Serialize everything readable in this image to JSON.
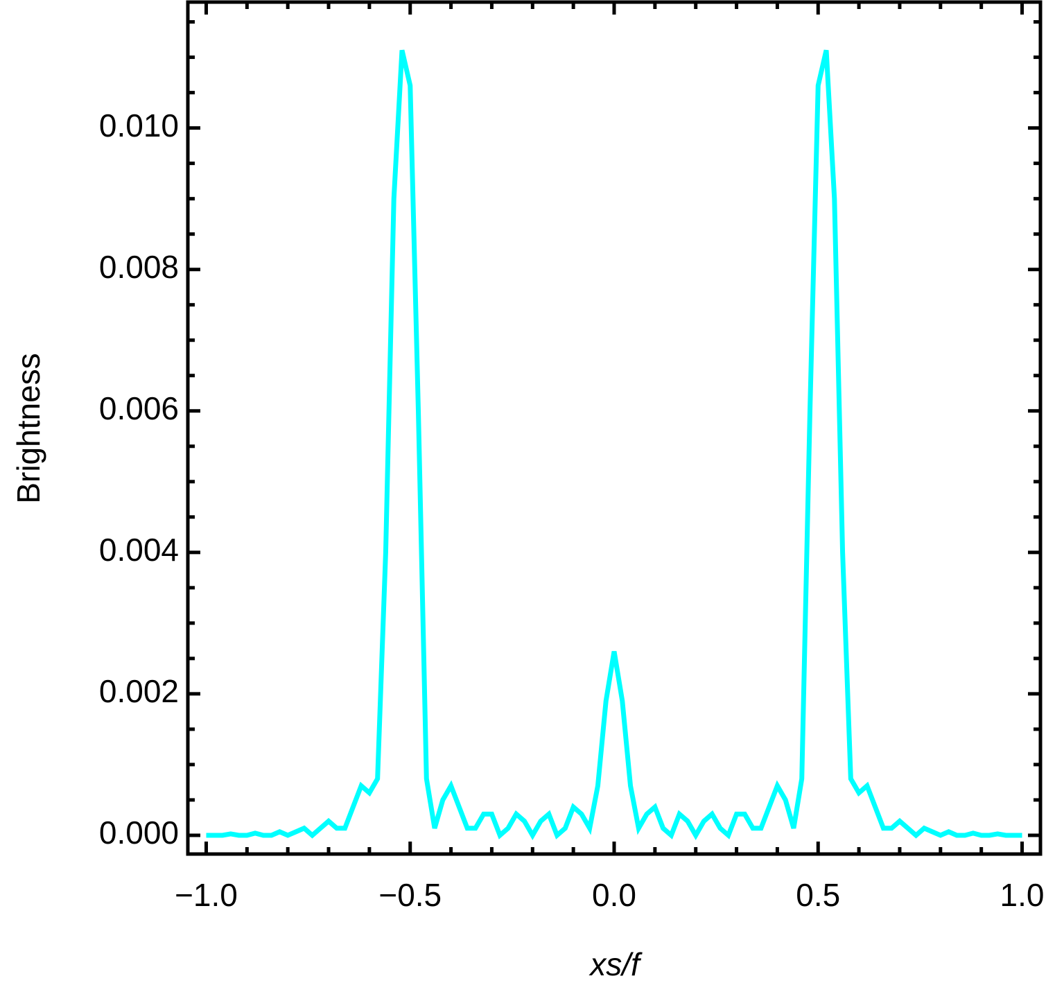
{
  "chart_data": {
    "type": "line",
    "xlabel": "xs/f",
    "ylabel": "Brightness",
    "x": [
      -1,
      -0.98,
      -0.96,
      -0.94,
      -0.92,
      -0.9,
      -0.88,
      -0.86,
      -0.84,
      -0.82,
      -0.8,
      -0.78,
      -0.76,
      -0.74,
      -0.72,
      -0.7,
      -0.68,
      -0.66,
      -0.64,
      -0.62,
      -0.6,
      -0.58,
      -0.56,
      -0.54,
      -0.52,
      -0.5,
      -0.48,
      -0.46,
      -0.44,
      -0.42,
      -0.4,
      -0.38,
      -0.36,
      -0.34,
      -0.32,
      -0.3,
      -0.28,
      -0.26,
      -0.24,
      -0.22,
      -0.2,
      -0.18,
      -0.16,
      -0.14,
      -0.12,
      -0.1,
      -0.08,
      -0.06,
      -0.04,
      -0.02,
      0,
      0.02,
      0.04,
      0.06,
      0.08,
      0.1,
      0.12,
      0.14,
      0.16,
      0.18,
      0.2,
      0.22,
      0.24,
      0.26,
      0.28,
      0.3,
      0.32,
      0.34,
      0.36,
      0.38,
      0.4,
      0.42,
      0.44,
      0.46,
      0.48,
      0.5,
      0.52,
      0.54,
      0.56,
      0.58,
      0.6,
      0.62,
      0.64,
      0.66,
      0.68,
      0.7,
      0.72,
      0.74,
      0.76,
      0.78,
      0.8,
      0.82,
      0.84,
      0.86,
      0.88,
      0.9,
      0.92,
      0.94,
      0.96,
      0.98,
      1
    ],
    "series": [
      {
        "color": "#00ffff",
        "values": [
          0,
          0,
          0,
          2e-05,
          0,
          0,
          3e-05,
          0,
          0,
          5e-05,
          0,
          5e-05,
          0.0001,
          0,
          0.0001,
          0.0002,
          0.0001,
          0.0001,
          0.0004,
          0.0007,
          0.0006,
          0.0008,
          0.004,
          0.009,
          0.0111,
          0.0106,
          0.006,
          0.0008,
          0.0001,
          0.0005,
          0.0007,
          0.0004,
          0.0001,
          0.0001,
          0.0003,
          0.0003,
          0,
          0.0001,
          0.0003,
          0.0002,
          0,
          0.0002,
          0.0003,
          0,
          0.0001,
          0.0004,
          0.0003,
          0.0001,
          0.0007,
          0.0019,
          0.0026,
          0.0019,
          0.0007,
          0.0001,
          0.0003,
          0.0004,
          0.0001,
          0,
          0.0003,
          0.0002,
          0,
          0.0002,
          0.0003,
          0.0001,
          0,
          0.0003,
          0.0003,
          0.0001,
          0.0001,
          0.0004,
          0.0007,
          0.0005,
          0.0001,
          0.0008,
          0.006,
          0.0106,
          0.0111,
          0.009,
          0.004,
          0.0008,
          0.0006,
          0.0007,
          0.0004,
          0.0001,
          0.0001,
          0.0002,
          0.0001,
          0,
          0.0001,
          5e-05,
          0,
          5e-05,
          0,
          0,
          3e-05,
          0,
          0,
          2e-05,
          0,
          0,
          0
        ]
      }
    ],
    "xlim": [
      -1.045,
      1.045
    ],
    "ylim": [
      -0.000265,
      0.01178
    ],
    "xticks": [
      {
        "value": -1,
        "label": "−1.0"
      },
      {
        "value": -0.5,
        "label": "−0.5"
      },
      {
        "value": 0,
        "label": "0.0"
      },
      {
        "value": 0.5,
        "label": "0.5"
      },
      {
        "value": 1,
        "label": "1.0"
      }
    ],
    "yticks": [
      {
        "value": 0,
        "label": "0.000"
      },
      {
        "value": 0.002,
        "label": "0.002"
      },
      {
        "value": 0.004,
        "label": "0.004"
      },
      {
        "value": 0.006,
        "label": "0.006"
      },
      {
        "value": 0.008,
        "label": "0.008"
      },
      {
        "value": 0.01,
        "label": "0.010"
      }
    ],
    "xminorticks": [
      -0.9,
      -0.8,
      -0.7,
      -0.6,
      -0.4,
      -0.3,
      -0.2,
      -0.1,
      0.1,
      0.2,
      0.3,
      0.4,
      0.6,
      0.7,
      0.8,
      0.9
    ],
    "yminorticks": [
      0.0005,
      0.001,
      0.0015,
      0.0025,
      0.003,
      0.0035,
      0.0045,
      0.005,
      0.0055,
      0.0065,
      0.007,
      0.0075,
      0.0085,
      0.009,
      0.0095,
      0.0105,
      0.011,
      0.0115
    ],
    "grid": false
  }
}
